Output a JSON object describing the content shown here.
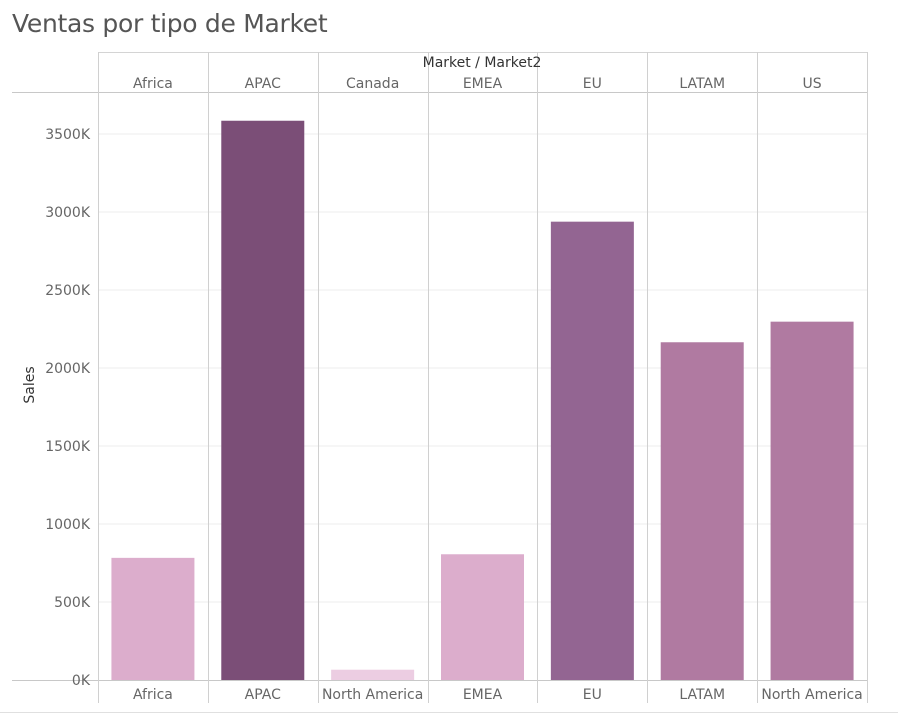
{
  "chart_data": {
    "type": "bar",
    "title": "Ventas por tipo de Market",
    "header_label": "Market  /  Market2",
    "ylabel": "Sales",
    "ylim": [
      0,
      3700000
    ],
    "yticks": [
      0,
      500000,
      1000000,
      1500000,
      2000000,
      2500000,
      3000000,
      3500000
    ],
    "ytick_labels": [
      "0K",
      "500K",
      "1000K",
      "1500K",
      "2000K",
      "2500K",
      "3000K",
      "3500K"
    ],
    "panels": [
      {
        "market": "Africa",
        "market2": "Africa",
        "value": 783000,
        "color": "#dcadcc"
      },
      {
        "market": "APAC",
        "market2": "APAC",
        "value": 3585000,
        "color": "#7b4e77"
      },
      {
        "market": "Canada",
        "market2": "North America",
        "value": 66000,
        "color": "#eccde2"
      },
      {
        "market": "EMEA",
        "market2": "EMEA",
        "value": 806000,
        "color": "#dcadcc"
      },
      {
        "market": "EU",
        "market2": "EU",
        "value": 2938000,
        "color": "#936592"
      },
      {
        "market": "LATAM",
        "market2": "LATAM",
        "value": 2165000,
        "color": "#b07aa1"
      },
      {
        "market": "US",
        "market2": "North America",
        "value": 2297000,
        "color": "#b07aa1"
      }
    ],
    "grid": true,
    "legend": "none"
  }
}
